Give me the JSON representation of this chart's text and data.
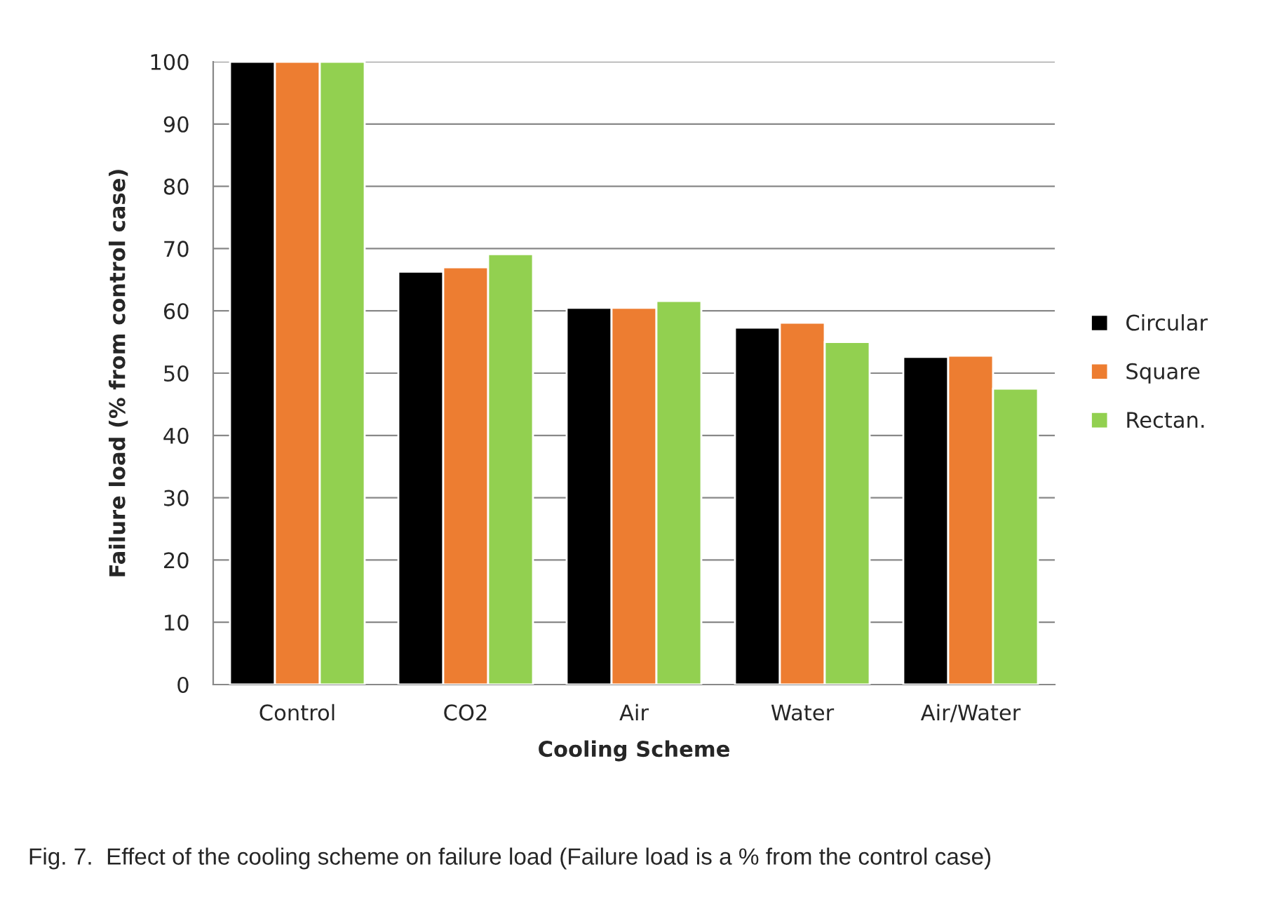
{
  "chart_data": {
    "type": "bar",
    "xlabel": "Cooling Scheme",
    "ylabel": "Failure load (% from control case)",
    "categories": [
      "Control",
      "CO2",
      "Air",
      "Water",
      "Air/Water"
    ],
    "series": [
      {
        "name": "Circular",
        "color": "#000000",
        "values": [
          100,
          66.3,
          60.5,
          57.3,
          52.6
        ]
      },
      {
        "name": "Square",
        "color": "#ed7d31",
        "values": [
          100,
          67,
          60.5,
          58.1,
          52.8
        ]
      },
      {
        "name": "Rectan.",
        "color": "#92d050",
        "values": [
          100,
          69.1,
          61.6,
          55,
          47.5
        ]
      }
    ],
    "ylim": [
      0,
      100
    ],
    "yticks": [
      0,
      10,
      20,
      30,
      40,
      50,
      60,
      70,
      80,
      90,
      100
    ],
    "grid": "y",
    "legend": "right",
    "annotations": [
      "Fig. 7.  Effect of the cooling scheme on failure load (Failure load is a % from the control case)"
    ]
  }
}
